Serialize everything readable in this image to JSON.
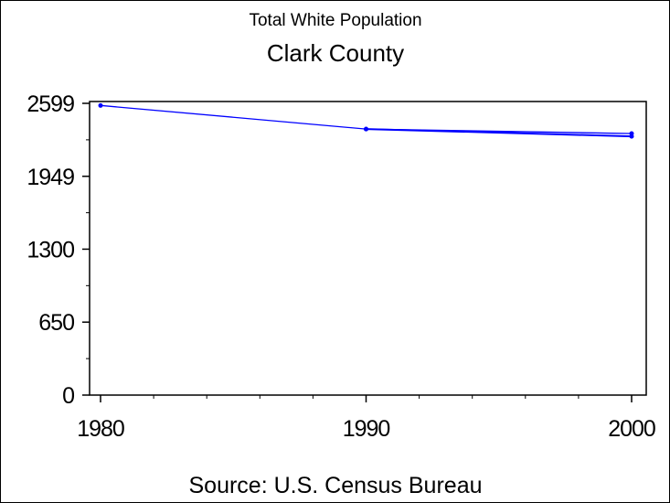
{
  "chart_data": {
    "type": "line",
    "title": "Total White Population",
    "subtitle": "Clark County",
    "footnote": "Source: U.S. Census Bureau",
    "xlabel": "",
    "ylabel": "",
    "xlim": [
      1978,
      2002
    ],
    "ylim": [
      0,
      2599
    ],
    "x_ticks": [
      "1980",
      "1990",
      "2000"
    ],
    "y_ticks": [
      "0",
      "650",
      "1300",
      "1949",
      "2599"
    ],
    "y_tick_values": [
      0,
      650,
      1300,
      1949,
      2599
    ],
    "x_tick_values": [
      1980,
      1990,
      2000
    ],
    "grid": false,
    "line_color": "#0000ff",
    "series": [
      {
        "x": [
          1980,
          1990,
          2000
        ],
        "y": [
          2580,
          2370,
          2330
        ]
      },
      {
        "x": [
          1990,
          2000
        ],
        "y": [
          2370,
          2305
        ]
      }
    ]
  }
}
